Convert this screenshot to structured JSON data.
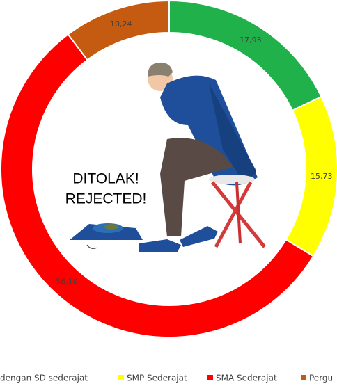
{
  "chart_data": {
    "type": "donut",
    "categories": [
      "dengan SD sederajat",
      "SMP Sederajat",
      "SMA Sederajat",
      "Pergu"
    ],
    "values": [
      17.93,
      15.73,
      56.1,
      10.24
    ],
    "value_labels": [
      "17,93",
      "15,73",
      "56,10",
      "10,24"
    ],
    "colors": [
      "#21b14b",
      "#ffff00",
      "#ff0000",
      "#c55a11"
    ],
    "annotations": [
      "DITOLAK!",
      "REJECTED!"
    ],
    "legend": "bottom"
  }
}
